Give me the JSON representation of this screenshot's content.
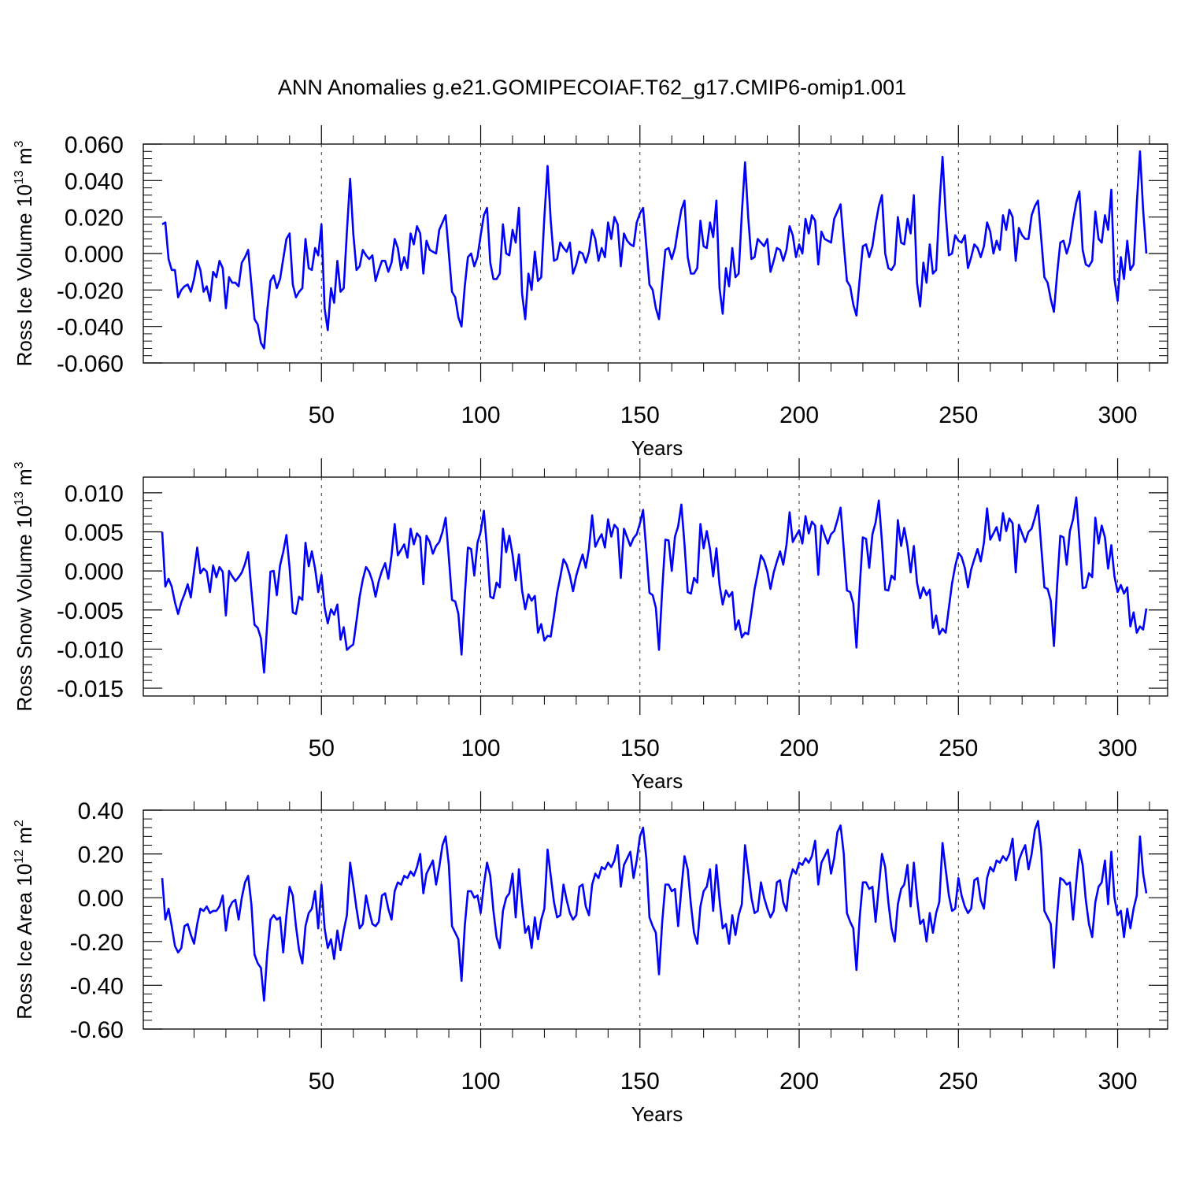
{
  "title": "ANN Anomalies g.e21.GOMIPECOIAF.T62_g17.CMIP6-omip1.001",
  "colors": {
    "series": "#0000ff",
    "axis": "#000000"
  },
  "chart_data": [
    {
      "type": "line",
      "ylabel_main": "Ross Ice Volume 10",
      "ylabel_exp": "13",
      "ylabel_unit": " m",
      "ylabel_unit_exp": "3",
      "xlabel": "Years",
      "xlim": [
        0,
        310
      ],
      "ylim": [
        -0.06,
        0.06
      ],
      "x_ticks": [
        50,
        100,
        150,
        200,
        250,
        300
      ],
      "x_tick_labels": [
        "50",
        "100",
        "150",
        "200",
        "250",
        "300"
      ],
      "y_ticks": [
        -0.06,
        -0.04,
        -0.02,
        0.0,
        0.02,
        0.04,
        0.06
      ],
      "y_tick_labels": [
        "-0.060",
        "-0.040",
        "-0.020",
        "0.000",
        "0.020",
        "0.040",
        "0.060"
      ],
      "x_start": 0,
      "values": [
        0.016,
        0.017,
        -0.003,
        -0.009,
        -0.009,
        -0.024,
        -0.02,
        -0.018,
        -0.017,
        -0.021,
        -0.014,
        -0.004,
        -0.009,
        -0.021,
        -0.018,
        -0.026,
        -0.01,
        -0.013,
        -0.004,
        -0.008,
        -0.03,
        -0.013,
        -0.016,
        -0.016,
        -0.018,
        -0.005,
        -0.002,
        0.002,
        -0.017,
        -0.036,
        -0.039,
        -0.049,
        -0.052,
        -0.031,
        -0.015,
        -0.012,
        -0.019,
        -0.014,
        -0.003,
        0.008,
        0.011,
        -0.017,
        -0.024,
        -0.021,
        -0.019,
        0.008,
        -0.008,
        -0.009,
        0.003,
        -0.001,
        0.016,
        -0.03,
        -0.042,
        -0.019,
        -0.027,
        -0.004,
        -0.021,
        -0.019,
        0.012,
        0.041,
        0.011,
        -0.009,
        -0.007,
        0.002,
        -0.001,
        -0.003,
        -0.001,
        -0.015,
        -0.009,
        -0.004,
        -0.004,
        -0.01,
        -0.005,
        0.008,
        0.003,
        -0.009,
        -0.002,
        -0.008,
        0.011,
        0.005,
        0.015,
        0.011,
        -0.011,
        0.007,
        0.002,
        0.001,
        0.0,
        0.013,
        0.017,
        0.021,
        0.0,
        -0.021,
        -0.024,
        -0.035,
        -0.04,
        -0.018,
        -0.002,
        0.0,
        -0.007,
        -0.002,
        0.01,
        0.021,
        0.025,
        -0.005,
        -0.014,
        -0.014,
        -0.011,
        0.016,
        0.0,
        -0.001,
        0.013,
        0.006,
        0.025,
        -0.022,
        -0.036,
        -0.011,
        -0.02,
        0.001,
        -0.015,
        -0.013,
        0.02,
        0.048,
        0.018,
        -0.004,
        -0.003,
        0.006,
        0.003,
        0.001,
        0.006,
        -0.011,
        -0.006,
        0.001,
        0.0,
        -0.005,
        0.001,
        0.013,
        0.008,
        -0.004,
        0.003,
        -0.002,
        0.017,
        0.008,
        0.02,
        0.016,
        -0.007,
        0.011,
        0.007,
        0.005,
        0.004,
        0.017,
        0.022,
        0.025,
        0.004,
        -0.017,
        -0.02,
        -0.03,
        -0.036,
        -0.016,
        0.002,
        0.003,
        -0.003,
        0.003,
        0.014,
        0.024,
        0.029,
        -0.002,
        -0.011,
        -0.011,
        -0.008,
        0.018,
        0.004,
        0.003,
        0.017,
        0.009,
        0.029,
        -0.019,
        -0.033,
        -0.008,
        -0.018,
        0.003,
        -0.013,
        -0.011,
        0.022,
        0.05,
        0.02,
        -0.003,
        -0.002,
        0.008,
        0.006,
        0.004,
        0.008,
        -0.01,
        -0.004,
        0.003,
        0.002,
        -0.004,
        0.002,
        0.015,
        0.01,
        -0.002,
        0.005,
        0.0,
        0.019,
        0.011,
        0.021,
        0.018,
        -0.006,
        0.012,
        0.008,
        0.007,
        0.006,
        0.019,
        0.023,
        0.027,
        0.005,
        -0.015,
        -0.018,
        -0.028,
        -0.034,
        -0.014,
        0.004,
        0.005,
        -0.002,
        0.004,
        0.016,
        0.026,
        0.032,
        0.0,
        -0.008,
        -0.009,
        -0.006,
        0.02,
        0.006,
        0.005,
        0.019,
        0.011,
        0.032,
        -0.016,
        -0.029,
        -0.005,
        -0.016,
        0.005,
        -0.011,
        -0.009,
        0.025,
        0.053,
        0.022,
        -0.001,
        0.0,
        0.01,
        0.007,
        0.006,
        0.01,
        -0.008,
        -0.002,
        0.005,
        0.003,
        -0.002,
        0.004,
        0.017,
        0.012,
        0.0,
        0.007,
        0.002,
        0.021,
        0.013,
        0.024,
        0.02,
        -0.004,
        0.014,
        0.01,
        0.008,
        0.008,
        0.021,
        0.026,
        0.029,
        0.008,
        -0.013,
        -0.016,
        -0.025,
        -0.032,
        -0.011,
        0.006,
        0.007,
        0.0,
        0.006,
        0.018,
        0.028,
        0.034,
        0.002,
        -0.006,
        -0.007,
        -0.004,
        0.023,
        0.008,
        0.006,
        0.021,
        0.013,
        0.035,
        -0.014,
        -0.026,
        -0.002,
        -0.014,
        0.007,
        -0.009,
        -0.006,
        0.027,
        0.056,
        0.024,
        0.0
      ]
    },
    {
      "type": "line",
      "ylabel_main": "Ross Snow Volume 10",
      "ylabel_exp": "13",
      "ylabel_unit": " m",
      "ylabel_unit_exp": "3",
      "xlabel": "Years",
      "xlim": [
        0,
        310
      ],
      "ylim": [
        -0.016,
        0.012
      ],
      "x_ticks": [
        50,
        100,
        150,
        200,
        250,
        300
      ],
      "x_tick_labels": [
        "50",
        "100",
        "150",
        "200",
        "250",
        "300"
      ],
      "y_ticks": [
        -0.015,
        -0.01,
        -0.005,
        0.0,
        0.005,
        0.01
      ],
      "y_tick_labels": [
        "-0.015",
        "-0.010",
        "-0.005",
        "0.000",
        "0.005",
        "0.010"
      ],
      "x_start": 0,
      "values": [
        0.005,
        -0.002,
        -0.001,
        -0.002,
        -0.004,
        -0.0055,
        -0.004,
        -0.003,
        -0.0017,
        -0.0034,
        0.0,
        0.003,
        -0.0003,
        0.0003,
        -0.0001,
        -0.0027,
        0.0007,
        -0.0008,
        0.0005,
        -0.0001,
        -0.0057,
        0.0,
        -0.0007,
        -0.0013,
        -0.0008,
        -0.0002,
        0.0009,
        0.0024,
        -0.0025,
        -0.0069,
        -0.0073,
        -0.0086,
        -0.013,
        -0.0066,
        -0.0001,
        0.0,
        -0.0031,
        0.0007,
        0.0024,
        0.0046,
        0.0004,
        -0.0053,
        -0.0055,
        -0.0033,
        -0.0037,
        0.0036,
        0.0006,
        0.0025,
        0.0003,
        -0.0027,
        -0.0005,
        -0.0047,
        -0.0067,
        -0.0049,
        -0.0056,
        -0.0043,
        -0.0088,
        -0.0072,
        -0.0101,
        -0.0097,
        -0.0094,
        -0.0064,
        -0.0033,
        -0.0011,
        0.0005,
        -0.0001,
        -0.0013,
        -0.0033,
        -0.0013,
        0.0,
        0.001,
        -0.001,
        0.002,
        0.006,
        0.002,
        0.0027,
        0.0034,
        0.0017,
        0.0054,
        0.0034,
        0.0048,
        0.0043,
        -0.0017,
        0.0045,
        0.0037,
        0.0022,
        0.0032,
        0.0037,
        0.005,
        0.0068,
        0.0017,
        -0.0037,
        -0.0039,
        -0.0055,
        -0.0107,
        -0.0032,
        0.003,
        0.0028,
        -0.0006,
        0.0036,
        0.005,
        0.0077,
        0.0028,
        -0.0033,
        -0.0035,
        -0.0015,
        -0.0021,
        0.0054,
        0.0024,
        0.0045,
        0.0021,
        -0.0012,
        0.0021,
        -0.0025,
        -0.0049,
        -0.003,
        -0.0038,
        -0.0032,
        -0.0079,
        -0.0068,
        -0.0089,
        -0.0083,
        -0.0084,
        -0.0057,
        -0.0028,
        -0.0008,
        0.0015,
        0.0008,
        -0.0006,
        -0.0026,
        -0.0006,
        0.0008,
        0.0021,
        0.0004,
        0.0029,
        0.0071,
        0.0031,
        0.004,
        0.0047,
        0.003,
        0.0066,
        0.0044,
        0.0059,
        0.0054,
        -0.0009,
        0.0054,
        0.0043,
        0.0032,
        0.0042,
        0.0047,
        0.0061,
        0.0078,
        0.0026,
        -0.0028,
        -0.0031,
        -0.0047,
        -0.0101,
        -0.0024,
        0.004,
        0.0039,
        0.0,
        0.0044,
        0.0057,
        0.0085,
        0.0034,
        -0.0027,
        -0.0029,
        -0.0009,
        -0.0015,
        0.006,
        0.0029,
        0.0051,
        0.0028,
        -0.0007,
        0.0029,
        -0.0018,
        -0.0043,
        -0.0025,
        -0.0033,
        -0.0027,
        -0.0075,
        -0.0063,
        -0.0085,
        -0.0079,
        -0.0081,
        -0.0052,
        -0.0023,
        -0.0003,
        0.002,
        0.0013,
        -0.0001,
        -0.0023,
        -0.0002,
        0.0012,
        0.0025,
        0.0008,
        0.0033,
        0.0075,
        0.0037,
        0.0045,
        0.0052,
        0.0035,
        0.007,
        0.0048,
        0.0063,
        0.0058,
        -0.0005,
        0.0058,
        0.0046,
        0.0035,
        0.0047,
        0.0051,
        0.0065,
        0.0081,
        0.0028,
        -0.0025,
        -0.0027,
        -0.0042,
        -0.0098,
        -0.0021,
        0.0043,
        0.0041,
        0.0004,
        0.0047,
        0.0062,
        0.009,
        0.0037,
        -0.0024,
        -0.0025,
        -0.0006,
        -0.0011,
        0.0065,
        0.0032,
        0.0055,
        0.0032,
        -0.0002,
        0.0032,
        -0.0015,
        -0.0035,
        -0.0021,
        -0.0031,
        -0.0024,
        -0.0073,
        -0.0057,
        -0.0081,
        -0.0074,
        -0.0079,
        -0.0047,
        -0.0016,
        0.0006,
        0.0023,
        0.0018,
        0.0004,
        -0.0021,
        0.0002,
        0.0015,
        0.0028,
        0.0012,
        0.0036,
        0.008,
        0.004,
        0.0048,
        0.0056,
        0.0039,
        0.0074,
        0.0051,
        0.0067,
        0.0061,
        -0.0002,
        0.0059,
        0.0048,
        0.0037,
        0.005,
        0.0054,
        0.0068,
        0.0084,
        0.0031,
        -0.0021,
        -0.0023,
        -0.0038,
        -0.0096,
        -0.0018,
        0.0045,
        0.0043,
        0.0008,
        0.0051,
        0.0066,
        0.0094,
        0.004,
        -0.0022,
        -0.0021,
        -0.0003,
        -0.0008,
        0.0068,
        0.0035,
        0.0058,
        0.0043,
        0.0003,
        0.0033,
        -0.0007,
        -0.0027,
        -0.0018,
        -0.0029,
        -0.0021,
        -0.0071,
        -0.0053,
        -0.0079,
        -0.0071,
        -0.0075,
        -0.0048
      ]
    },
    {
      "type": "line",
      "ylabel_main": "Ross Ice Area 10",
      "ylabel_exp": "12",
      "ylabel_unit": " m",
      "ylabel_unit_exp": "2",
      "xlabel": "Years",
      "xlim": [
        0,
        310
      ],
      "ylim": [
        -0.6,
        0.4
      ],
      "x_ticks": [
        50,
        100,
        150,
        200,
        250,
        300
      ],
      "x_tick_labels": [
        "50",
        "100",
        "150",
        "200",
        "250",
        "300"
      ],
      "y_ticks": [
        -0.6,
        -0.4,
        -0.2,
        0.0,
        0.2,
        0.4
      ],
      "y_tick_labels": [
        "-0.60",
        "-0.40",
        "-0.20",
        "0.00",
        "0.20",
        "0.40"
      ],
      "x_start": 0,
      "values": [
        0.09,
        -0.1,
        -0.05,
        -0.13,
        -0.22,
        -0.25,
        -0.23,
        -0.13,
        -0.12,
        -0.17,
        -0.21,
        -0.12,
        -0.05,
        -0.06,
        -0.04,
        -0.07,
        -0.06,
        -0.06,
        -0.04,
        0.01,
        -0.15,
        -0.05,
        -0.02,
        -0.01,
        -0.1,
        0.0,
        0.07,
        0.1,
        -0.03,
        -0.26,
        -0.3,
        -0.32,
        -0.47,
        -0.25,
        -0.1,
        -0.08,
        -0.1,
        -0.09,
        -0.25,
        -0.08,
        0.05,
        0.01,
        -0.13,
        -0.24,
        -0.3,
        -0.13,
        -0.07,
        -0.05,
        0.03,
        -0.14,
        0.06,
        -0.14,
        -0.23,
        -0.19,
        -0.28,
        -0.15,
        -0.24,
        -0.15,
        -0.08,
        0.16,
        0.06,
        -0.05,
        -0.14,
        -0.12,
        0.01,
        -0.06,
        -0.12,
        -0.13,
        -0.11,
        0.01,
        0.02,
        -0.05,
        -0.1,
        0.03,
        0.07,
        0.06,
        0.1,
        0.09,
        0.12,
        0.1,
        0.14,
        0.2,
        0.02,
        0.11,
        0.14,
        0.17,
        0.06,
        0.14,
        0.24,
        0.28,
        0.15,
        -0.13,
        -0.16,
        -0.19,
        -0.38,
        -0.13,
        0.03,
        0.03,
        0.0,
        0.01,
        -0.07,
        0.06,
        0.16,
        0.1,
        -0.06,
        -0.18,
        -0.23,
        -0.06,
        0.0,
        0.02,
        0.11,
        -0.09,
        0.13,
        -0.03,
        -0.16,
        -0.13,
        -0.23,
        -0.09,
        -0.19,
        -0.1,
        -0.05,
        0.22,
        0.1,
        -0.02,
        -0.09,
        -0.08,
        0.06,
        -0.01,
        -0.07,
        -0.1,
        -0.08,
        0.05,
        0.06,
        -0.04,
        -0.08,
        0.06,
        0.11,
        0.09,
        0.14,
        0.13,
        0.16,
        0.14,
        0.17,
        0.24,
        0.05,
        0.15,
        0.18,
        0.21,
        0.09,
        0.17,
        0.28,
        0.32,
        0.18,
        -0.09,
        -0.13,
        -0.16,
        -0.35,
        -0.11,
        0.06,
        0.06,
        0.03,
        0.04,
        -0.13,
        0.04,
        0.19,
        0.13,
        -0.03,
        -0.16,
        -0.21,
        -0.04,
        0.03,
        0.05,
        0.13,
        -0.06,
        0.15,
        -0.01,
        -0.14,
        -0.12,
        -0.21,
        -0.08,
        -0.17,
        -0.08,
        -0.03,
        0.24,
        0.12,
        0.0,
        -0.07,
        -0.06,
        0.07,
        0.0,
        -0.05,
        -0.09,
        -0.06,
        0.07,
        0.08,
        -0.02,
        -0.06,
        0.08,
        0.13,
        0.11,
        0.16,
        0.15,
        0.18,
        0.16,
        0.19,
        0.26,
        0.06,
        0.16,
        0.19,
        0.22,
        0.11,
        0.18,
        0.3,
        0.33,
        0.2,
        -0.07,
        -0.11,
        -0.14,
        -0.33,
        -0.09,
        0.07,
        0.07,
        0.04,
        0.05,
        -0.11,
        0.05,
        0.2,
        0.14,
        -0.02,
        -0.14,
        -0.2,
        -0.03,
        0.04,
        0.06,
        0.15,
        -0.04,
        0.16,
        0.0,
        -0.12,
        -0.1,
        -0.2,
        -0.07,
        -0.16,
        -0.07,
        -0.02,
        0.25,
        0.13,
        0.01,
        -0.06,
        -0.05,
        0.09,
        0.01,
        -0.04,
        -0.07,
        -0.05,
        0.08,
        0.09,
        -0.01,
        -0.05,
        0.09,
        0.14,
        0.12,
        0.17,
        0.16,
        0.19,
        0.17,
        0.2,
        0.27,
        0.08,
        0.17,
        0.21,
        0.24,
        0.13,
        0.2,
        0.31,
        0.35,
        0.22,
        -0.06,
        -0.09,
        -0.12,
        -0.32,
        -0.08,
        0.09,
        0.08,
        0.06,
        0.07,
        -0.1,
        0.07,
        0.22,
        0.15,
        -0.01,
        -0.12,
        -0.18,
        -0.02,
        0.05,
        0.07,
        0.17,
        -0.03,
        0.21,
        0.0,
        -0.08,
        -0.06,
        -0.18,
        -0.05,
        -0.14,
        -0.05,
        0.01,
        0.28,
        0.11,
        0.02
      ]
    }
  ]
}
